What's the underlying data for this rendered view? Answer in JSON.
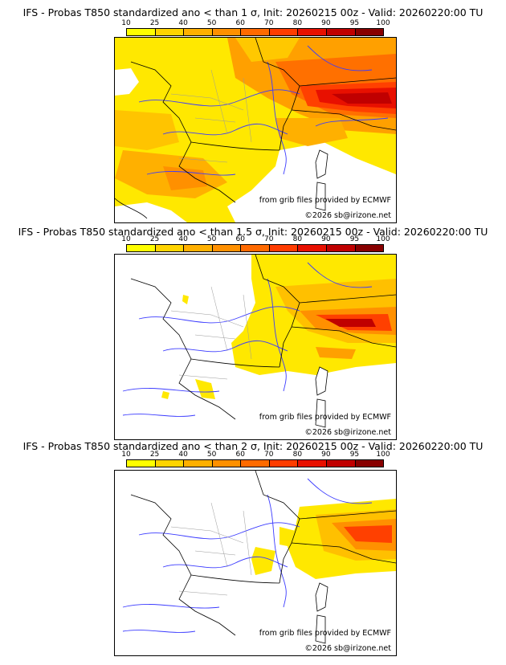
{
  "colorbar": {
    "ticks": [
      "10",
      "25",
      "40",
      "50",
      "60",
      "70",
      "80",
      "90",
      "95",
      "100"
    ],
    "colors": [
      "#ffff00",
      "#ffd400",
      "#ffb000",
      "#ff9000",
      "#ff6a00",
      "#ff3c00",
      "#e81000",
      "#c00000",
      "#880000"
    ]
  },
  "panels": [
    {
      "title": "IFS - Probas T850  standardized ano < than 1 σ, Init: 20260215 00z - Valid: 20260220:00 TU",
      "source_note": "from grib files provided by ECMWF",
      "copyright": "©2026 sb@irizone.net"
    },
    {
      "title": "IFS - Probas T850  standardized ano < than 1.5 σ, Init: 20260215 00z - Valid: 20260220:00 TU",
      "source_note": "from grib files provided by ECMWF",
      "copyright": "©2026 sb@irizone.net"
    },
    {
      "title": "IFS - Probas T850  standardized ano < than 2 σ, Init: 20260215 00z - Valid: 20260220:00 TU",
      "source_note": "from grib files provided by ECMWF",
      "copyright": "©2026 sb@irizone.net"
    }
  ]
}
